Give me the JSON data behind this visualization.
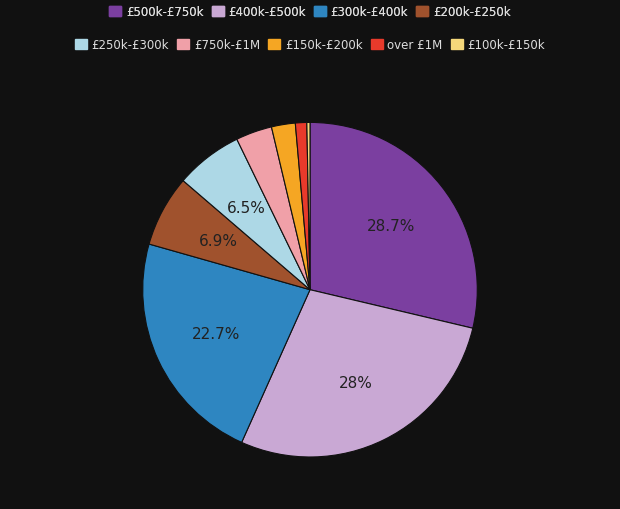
{
  "labels": [
    "£500k-£750k",
    "£400k-£500k",
    "£300k-£400k",
    "£200k-£250k",
    "£250k-£300k",
    "£750k-£1M",
    "£150k-£200k",
    "over £1M",
    "£100k-£150k"
  ],
  "values": [
    28.7,
    28.0,
    22.7,
    6.9,
    6.5,
    3.5,
    2.3,
    1.1,
    0.3
  ],
  "colors": [
    "#7b3fa0",
    "#c9a8d4",
    "#2e86c1",
    "#a0522d",
    "#add8e6",
    "#f0a0a8",
    "#f5a623",
    "#e83a2b",
    "#f5d87a"
  ],
  "pct_labels": [
    "28.7%",
    "28%",
    "22.7%",
    "6.9%",
    "6.5%",
    "",
    "",
    "",
    ""
  ],
  "background_color": "#111111",
  "text_color": "#dddddd",
  "label_color": "#222222",
  "legend_row1": [
    "£500k-£750k",
    "£400k-£500k",
    "£300k-£400k",
    "£200k-£250k"
  ],
  "legend_row2": [
    "£250k-£300k",
    "£750k-£1M",
    "£150k-£200k",
    "over £1M",
    "£100k-£150k"
  ],
  "legend_colors_row1": [
    "#7b3fa0",
    "#c9a8d4",
    "#2e86c1",
    "#a0522d"
  ],
  "legend_colors_row2": [
    "#add8e6",
    "#f0a0a8",
    "#f5a623",
    "#e83a2b",
    "#f5d87a"
  ]
}
